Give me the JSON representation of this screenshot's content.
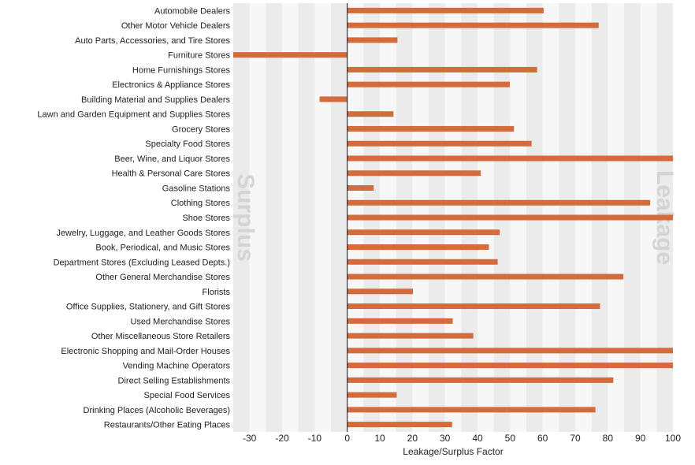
{
  "chart_data": {
    "type": "bar",
    "orientation": "horizontal",
    "xlabel": "Leakage/Surplus Factor",
    "ylabel": "",
    "xlim": [
      -35,
      100
    ],
    "xticks": [
      -30,
      -20,
      -10,
      0,
      10,
      20,
      30,
      40,
      50,
      60,
      70,
      80,
      90,
      100
    ],
    "grid": "alternating vertical bands",
    "region_labels": {
      "left": "Surplus",
      "right": "Leakage"
    },
    "bar_color": "#d36b3d",
    "categories": [
      "Automobile Dealers",
      "Other Motor Vehicle Dealers",
      "Auto Parts, Accessories, and Tire Stores",
      "Furniture Stores",
      "Home Furnishings Stores",
      "Electronics & Appliance Stores",
      "Building Material and Supplies Dealers",
      "Lawn and Garden Equipment and Supplies Stores",
      "Grocery Stores",
      "Specialty Food Stores",
      "Beer, Wine, and Liquor Stores",
      "Health & Personal Care Stores",
      "Gasoline Stations",
      "Clothing Stores",
      "Shoe Stores",
      "Jewelry, Luggage, and Leather Goods Stores",
      "Book, Periodical, and Music Stores",
      "Department Stores (Excluding Leased Depts.)",
      "Other General Merchandise Stores",
      "Florists",
      "Office Supplies, Stationery, and Gift Stores",
      "Used Merchandise Stores",
      "Other Miscellaneous Store Retailers",
      "Electronic Shopping and Mail-Order Houses",
      "Vending Machine Operators",
      "Direct Selling Establishments",
      "Special Food Services",
      "Drinking Places (Alcoholic Beverages)",
      "Restaurants/Other Eating Places"
    ],
    "values": [
      60.3,
      77.2,
      15.4,
      -35,
      58.3,
      49.9,
      -8.5,
      14.2,
      51.2,
      56.6,
      100,
      41.0,
      8.1,
      93.0,
      100,
      46.8,
      43.5,
      46.2,
      84.8,
      20.2,
      77.6,
      32.4,
      38.7,
      100,
      100,
      81.7,
      15.2,
      76.2,
      32.2
    ]
  }
}
